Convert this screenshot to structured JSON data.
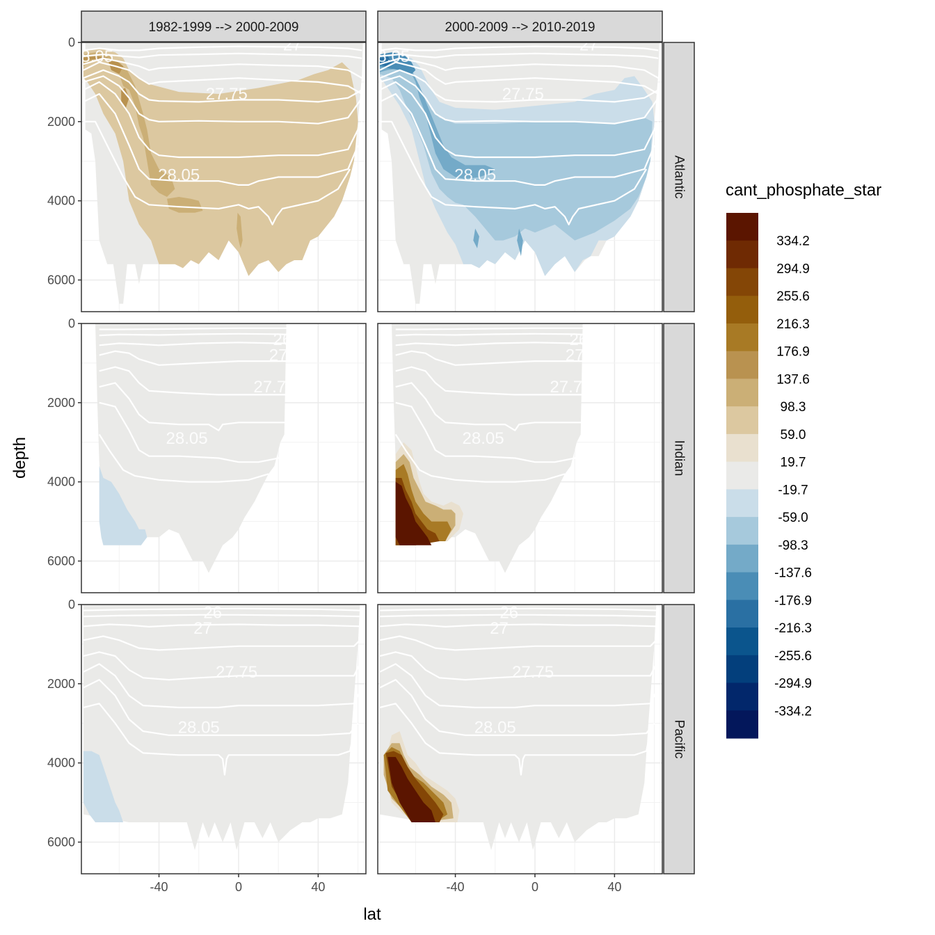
{
  "chart_data": {
    "type": "heatmap",
    "xlabel": "lat",
    "ylabel": "depth",
    "xlim": [
      -79,
      64
    ],
    "ylim": [
      0,
      6800
    ],
    "x_ticks": [
      "-40",
      "0",
      "40"
    ],
    "x_tick_values": [
      -40,
      0,
      40
    ],
    "y_ticks": [
      "0",
      "2000",
      "4000",
      "6000"
    ],
    "y_tick_values": [
      0,
      2000,
      4000,
      6000
    ],
    "column_facets": [
      "1982-1999 --> 2000-2009",
      "2000-2009 --> 2010-2019"
    ],
    "row_facets": [
      "Atlantic",
      "Indian",
      "Pacific"
    ],
    "isopycnal_labels": [
      "26",
      "27",
      "27.75",
      "28.05"
    ],
    "legend": {
      "title": "cant_phosphate_star",
      "breaks": [
        "334.2",
        "294.9",
        "255.6",
        "216.3",
        "176.9",
        "137.6",
        "98.3",
        "59.0",
        "19.7",
        "-19.7",
        "-59.0",
        "-98.3",
        "-137.6",
        "-176.9",
        "-216.3",
        "-255.6",
        "-294.9",
        "-334.2"
      ],
      "colors": [
        "#5b1500",
        "#6f2a03",
        "#844606",
        "#945e0c",
        "#a87a25",
        "#b99250",
        "#cbaf76",
        "#dcc8a0",
        "#e9e0cf",
        "#eaeae8",
        "#cadde9",
        "#a6c9dc",
        "#74aac8",
        "#4a8db6",
        "#2a70a3",
        "#0b558d",
        "#033f7c",
        "#02276b",
        "#03175b"
      ]
    },
    "panels": [
      {
        "row": "Atlantic",
        "col": "1982-1999 --> 2000-2009",
        "summary": "weak positive (19.7 to 98.3) from 1000 to 5800 m, ~98-137 near -30 lat 4000 m"
      },
      {
        "row": "Atlantic",
        "col": "2000-2009 --> 2010-2019",
        "summary": "negative (-19.7 to -137.6), strongest -137.6 to -216.3 near 500 m at -75 lat"
      },
      {
        "row": "Indian",
        "col": "1982-1999 --> 2000-2009",
        "summary": "near zero, small -19.7 to -59.0 patch at -70 to -50 lat below 3800 m"
      },
      {
        "row": "Indian",
        "col": "2000-2009 --> 2010-2019",
        "summary": "strong positive > 334 at -75 to -55 lat, 4000-5400 m"
      },
      {
        "row": "Pacific",
        "col": "1982-1999 --> 2000-2009",
        "summary": "near zero, small -19.7 to -59.0 patch at -78 to -58 lat below 3700 m"
      },
      {
        "row": "Pacific",
        "col": "2000-2009 --> 2010-2019",
        "summary": "strong positive > 334 at -75 to -45 lat, 3600-5500 m"
      }
    ]
  }
}
